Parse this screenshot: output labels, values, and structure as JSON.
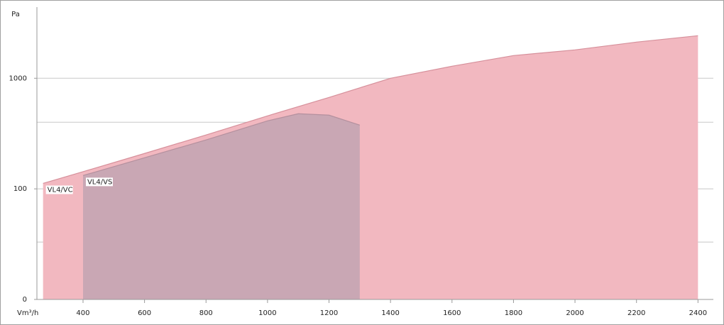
{
  "chart_data": {
    "type": "area",
    "y_label": "Pa",
    "x_label": "Vm³/h",
    "log_y": true,
    "grid": true,
    "xlim": [
      250,
      2450
    ],
    "ylim": [
      10,
      4400
    ],
    "xticks": [
      400,
      600,
      800,
      1000,
      1200,
      1400,
      1600,
      1800,
      2000,
      2200,
      2400
    ],
    "yticks": [
      {
        "value": 10,
        "label": "0"
      },
      100,
      1000
    ],
    "ygrid": [
      33,
      400
    ],
    "series": [
      {
        "name": "VL4/VC",
        "color": "#f2b8c0",
        "line_color": "#d6909b",
        "x": [
          270,
          400,
          600,
          800,
          1000,
          1200,
          1400,
          1600,
          1800,
          2000,
          2200,
          2400
        ],
        "values": [
          112,
          143,
          209,
          307,
          457,
          671,
          1000,
          1285,
          1604,
          1805,
          2123,
          2425
        ]
      },
      {
        "name": "VL4/VS",
        "color": "#c9a7b4",
        "line_color": "#b4909e",
        "x": [
          400,
          600,
          800,
          1000,
          1100,
          1200,
          1300
        ],
        "values": [
          132,
          191,
          277,
          412,
          478,
          464,
          377
        ]
      }
    ]
  }
}
